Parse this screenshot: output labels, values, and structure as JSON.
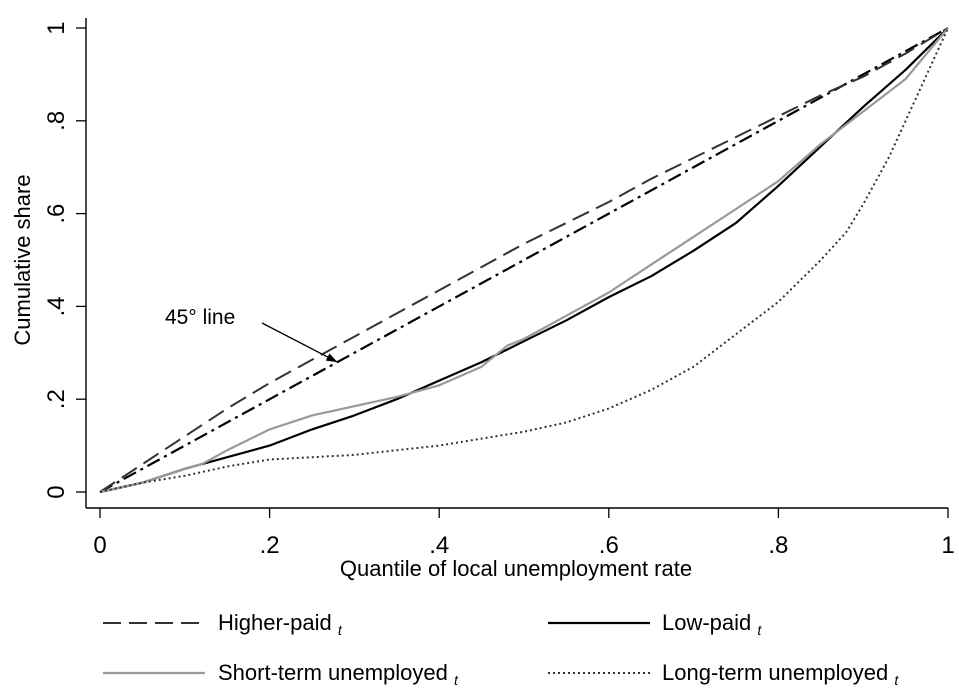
{
  "chart_data": {
    "type": "line",
    "xlabel": "Quantile of local unemployment rate",
    "ylabel": "Cumulative share",
    "xlim": [
      0,
      1
    ],
    "ylim": [
      0,
      1
    ],
    "xticks": [
      {
        "value": 0,
        "label": "0"
      },
      {
        "value": 0.2,
        "label": ".2"
      },
      {
        "value": 0.4,
        "label": ".4"
      },
      {
        "value": 0.6,
        "label": ".6"
      },
      {
        "value": 0.8,
        "label": ".8"
      },
      {
        "value": 1,
        "label": "1"
      }
    ],
    "yticks": [
      {
        "value": 0,
        "label": "0"
      },
      {
        "value": 0.2,
        "label": ".2"
      },
      {
        "value": 0.4,
        "label": ".4"
      },
      {
        "value": 0.6,
        "label": ".6"
      },
      {
        "value": 0.8,
        "label": ".8"
      },
      {
        "value": 1,
        "label": "1"
      }
    ],
    "grid": false,
    "legend_position": "bottom",
    "annotation": {
      "text": "45° line",
      "points_to": [
        0.28,
        0.28
      ]
    },
    "reference_line": {
      "x": [
        0,
        1
      ],
      "y": [
        0,
        1
      ],
      "style": "dashdot",
      "color": "#000000"
    },
    "series": [
      {
        "name": "Higher-paid",
        "subscript": "t",
        "style": "dashed",
        "color": "#333333",
        "x": [
          0,
          0.05,
          0.1,
          0.15,
          0.2,
          0.25,
          0.3,
          0.35,
          0.4,
          0.45,
          0.5,
          0.55,
          0.6,
          0.65,
          0.7,
          0.75,
          0.8,
          0.85,
          0.9,
          0.95,
          1
        ],
        "y": [
          0,
          0.06,
          0.12,
          0.18,
          0.235,
          0.285,
          0.335,
          0.385,
          0.435,
          0.485,
          0.535,
          0.58,
          0.625,
          0.675,
          0.72,
          0.765,
          0.81,
          0.855,
          0.895,
          0.945,
          1
        ]
      },
      {
        "name": "Low-paid",
        "subscript": "t",
        "style": "solid",
        "color": "#000000",
        "x": [
          0,
          0.05,
          0.1,
          0.15,
          0.2,
          0.25,
          0.3,
          0.35,
          0.4,
          0.45,
          0.5,
          0.55,
          0.6,
          0.65,
          0.7,
          0.75,
          0.8,
          0.85,
          0.9,
          0.95,
          1
        ],
        "y": [
          0,
          0.02,
          0.05,
          0.075,
          0.1,
          0.135,
          0.165,
          0.2,
          0.24,
          0.28,
          0.325,
          0.37,
          0.42,
          0.465,
          0.52,
          0.58,
          0.66,
          0.745,
          0.83,
          0.91,
          1
        ]
      },
      {
        "name": "Short-term unemployed",
        "subscript": "t",
        "style": "solid",
        "color": "#999999",
        "x": [
          0,
          0.05,
          0.1,
          0.12,
          0.15,
          0.2,
          0.25,
          0.3,
          0.35,
          0.4,
          0.45,
          0.48,
          0.5,
          0.55,
          0.6,
          0.65,
          0.7,
          0.75,
          0.8,
          0.85,
          0.9,
          0.95,
          1
        ],
        "y": [
          0,
          0.02,
          0.05,
          0.06,
          0.09,
          0.135,
          0.165,
          0.185,
          0.205,
          0.23,
          0.27,
          0.315,
          0.33,
          0.38,
          0.43,
          0.49,
          0.55,
          0.61,
          0.67,
          0.75,
          0.82,
          0.89,
          1
        ]
      },
      {
        "name": "Long-term unemployed",
        "subscript": "t",
        "style": "dotted",
        "color": "#333333",
        "x": [
          0,
          0.05,
          0.1,
          0.15,
          0.2,
          0.25,
          0.3,
          0.35,
          0.4,
          0.45,
          0.5,
          0.55,
          0.6,
          0.65,
          0.7,
          0.75,
          0.8,
          0.85,
          0.88,
          0.9,
          0.93,
          0.95,
          0.97,
          1
        ],
        "y": [
          0,
          0.02,
          0.035,
          0.055,
          0.07,
          0.075,
          0.08,
          0.09,
          0.1,
          0.115,
          0.13,
          0.15,
          0.18,
          0.22,
          0.27,
          0.34,
          0.41,
          0.5,
          0.56,
          0.62,
          0.72,
          0.8,
          0.88,
          1
        ]
      }
    ]
  }
}
